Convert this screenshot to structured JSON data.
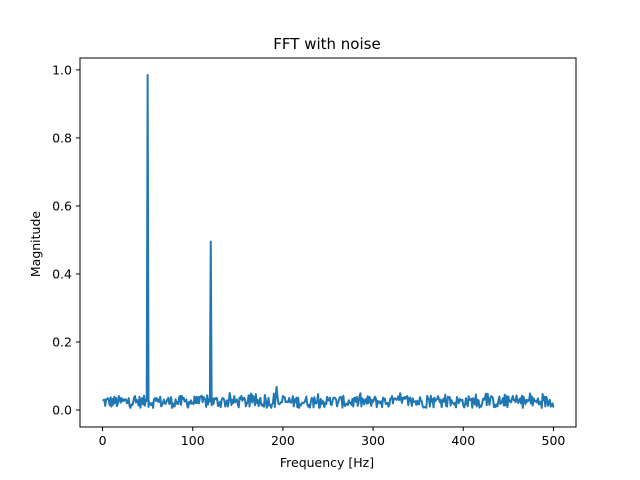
{
  "chart_data": {
    "type": "line",
    "title": "FFT with noise",
    "xlabel": "Frequency [Hz]",
    "ylabel": "Magnitude",
    "xlim": [
      -25,
      525
    ],
    "ylim": [
      -0.05,
      1.035
    ],
    "xticks": [
      0,
      100,
      200,
      300,
      400,
      500
    ],
    "xtick_labels": [
      "0",
      "100",
      "200",
      "300",
      "400",
      "500"
    ],
    "yticks": [
      0.0,
      0.2,
      0.4,
      0.6,
      0.8,
      1.0
    ],
    "ytick_labels": [
      "0.0",
      "0.2",
      "0.4",
      "0.6",
      "0.8",
      "1.0"
    ],
    "grid": false,
    "legend": "none",
    "series": [
      {
        "color": "#1f77b4",
        "x_range": [
          0,
          500
        ],
        "noise_floor": [
          0.0,
          0.05
        ],
        "peaks": [
          {
            "x": 50,
            "y": 0.985
          },
          {
            "x": 120,
            "y": 0.495
          },
          {
            "x": 193,
            "y": 0.068
          }
        ]
      }
    ]
  }
}
